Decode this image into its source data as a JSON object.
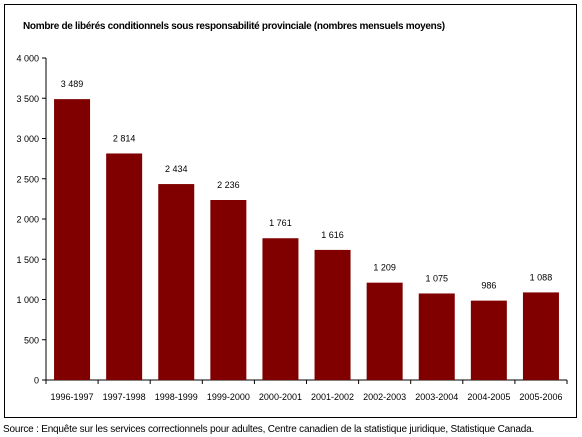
{
  "chart_data": {
    "type": "bar",
    "title": "Nombre de libérés conditionnels sous responsabilité provinciale (nombres mensuels moyens)",
    "categories": [
      "1996-1997",
      "1997-1998",
      "1998-1999",
      "1999-2000",
      "2000-2001",
      "2001-2002",
      "2002-2003",
      "2003-2004",
      "2004-2005",
      "2005-2006"
    ],
    "values": [
      3489,
      2814,
      2434,
      2236,
      1761,
      1616,
      1209,
      1075,
      986,
      1088
    ],
    "value_labels": [
      "3 489",
      "2 814",
      "2 434",
      "2 236",
      "1 761",
      "1 616",
      "1 209",
      "1 075",
      "986",
      "1 088"
    ],
    "y_ticks": [
      0,
      500,
      1000,
      1500,
      2000,
      2500,
      3000,
      3500,
      4000
    ],
    "y_tick_labels": [
      "0",
      "500",
      "1 000",
      "1 500",
      "2 000",
      "2 500",
      "3 000",
      "3 500",
      "4 000"
    ],
    "ylim": [
      0,
      4000
    ],
    "grid": false,
    "bar_color": "#800000"
  },
  "source": "Source : Enquête sur les services correctionnels pour adultes, Centre canadien de la statistique juridique, Statistique Canada."
}
